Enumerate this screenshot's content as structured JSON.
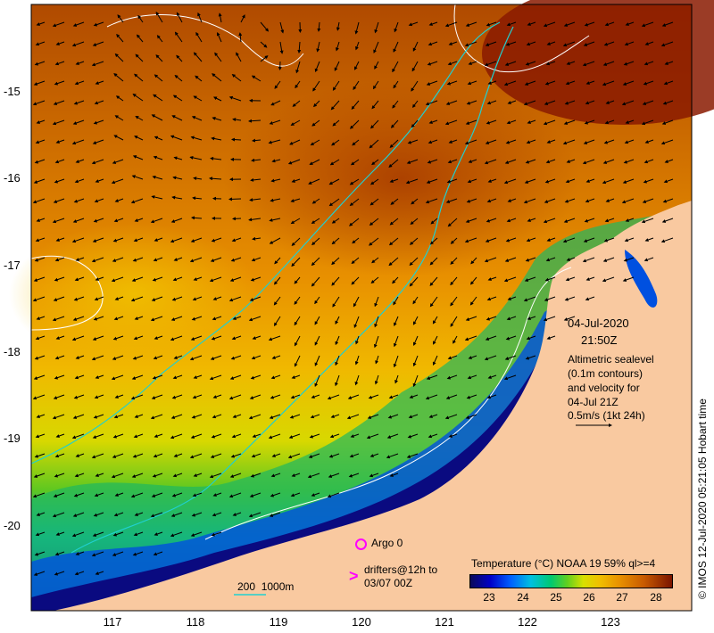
{
  "map": {
    "date": "04-Jul-2020",
    "time": "21:50Z",
    "info_lines": [
      "Altimetric sealevel",
      "(0.1m contours)",
      "and velocity for",
      "04-Jul 21Z",
      "0.5m/s (1kt 24h)"
    ],
    "lat_labels": [
      "-15",
      "-16",
      "-17",
      "-18",
      "-19",
      "-20"
    ],
    "lon_labels": [
      "117",
      "118",
      "119",
      "120",
      "121",
      "122",
      "123"
    ],
    "argo_label": "Argo 0",
    "drifter_label_1": "drifters@12h to",
    "drifter_label_2": "03/07 00Z",
    "depth_label": "200  1000m",
    "legend_title": "Temperature (°C) NOAA 19 59% ql>=4",
    "colorbar_ticks": [
      "23",
      "24",
      "25",
      "26",
      "27",
      "28"
    ],
    "credit": "© IMOS 12-Jul-2020 05:21:05 Hobart time",
    "colors": {
      "land": "#f9c9a0",
      "argo": "#ff00ff",
      "depth_200": "#20d0d0",
      "depth_1000": "#ffffff",
      "sst_warm": "#c05a00",
      "sst_cool": "#0000c8"
    }
  }
}
